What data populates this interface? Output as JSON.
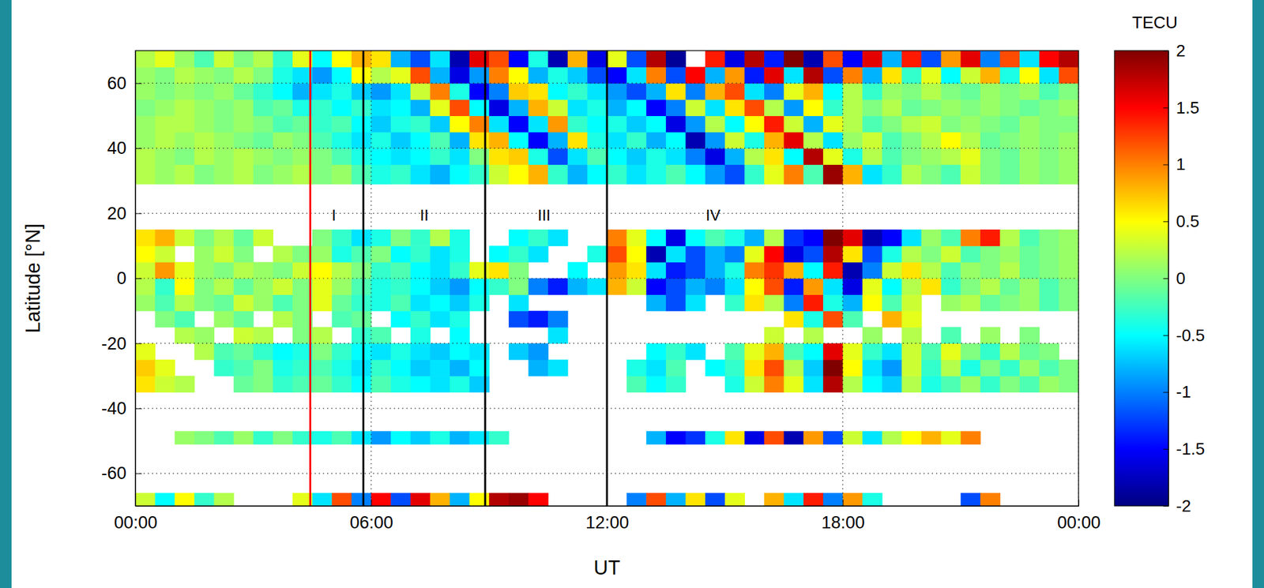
{
  "chart_data": {
    "type": "heatmap",
    "xlabel": "UT",
    "ylabel": "Latitude [°N]",
    "xlim": [
      0,
      24
    ],
    "ylim": [
      -70,
      70
    ],
    "xticks": [
      {
        "value": 0,
        "label": "00:00"
      },
      {
        "value": 6,
        "label": "06:00"
      },
      {
        "value": 12,
        "label": "12:00"
      },
      {
        "value": 18,
        "label": "18:00"
      },
      {
        "value": 24,
        "label": "00:00"
      }
    ],
    "yticks": [
      -60,
      -40,
      -20,
      0,
      20,
      40,
      60
    ],
    "grid": true,
    "x_bins": [
      0,
      0.5,
      1,
      1.5,
      2,
      2.5,
      3,
      3.5,
      4,
      4.5,
      5,
      5.5,
      6,
      6.5,
      7,
      7.5,
      8,
      8.5,
      9,
      9.5,
      10,
      10.5,
      11,
      11.5,
      12,
      12.5,
      13,
      13.5,
      14,
      14.5,
      15,
      15.5,
      16,
      16.5,
      17,
      17.5,
      18,
      18.5,
      19,
      19.5,
      20,
      20.5,
      21,
      21.5,
      22,
      22.5,
      23,
      23.5,
      24
    ],
    "y_bins": [
      -70,
      -66,
      -51,
      -47,
      -35,
      -30,
      -25,
      -20,
      -15,
      -10,
      -5,
      0,
      5,
      10,
      15,
      29,
      35,
      40,
      45,
      50,
      55,
      60,
      65,
      70
    ],
    "values": [
      [
        0.3,
        -0.5,
        0.5,
        -0.3,
        0.2,
        null,
        null,
        null,
        0.4,
        -0.6,
        1.2,
        -1.0,
        1.5,
        -1.2,
        1.6,
        0.8,
        -0.8,
        0.5,
        1.8,
        1.9,
        1.5,
        null,
        null,
        null,
        null,
        -1.0,
        1.2,
        -0.8,
        0.6,
        -1.2,
        0.4,
        null,
        0.8,
        -0.6,
        1.4,
        -1.0,
        0.9,
        -0.4,
        null,
        null,
        null,
        null,
        -1.2,
        1.0,
        null,
        null,
        null,
        null
      ],
      [
        null,
        null,
        null,
        null,
        null,
        null,
        null,
        null,
        null,
        null,
        null,
        null,
        null,
        null,
        null,
        null,
        null,
        null,
        null,
        null,
        null,
        null,
        null,
        null,
        null,
        null,
        null,
        null,
        null,
        null,
        null,
        null,
        null,
        null,
        null,
        null,
        null,
        null,
        null,
        null,
        null,
        null,
        null,
        null,
        null,
        null,
        null,
        null
      ],
      [
        null,
        null,
        0.1,
        0.0,
        -0.2,
        0.1,
        -0.3,
        0.0,
        -0.3,
        -0.4,
        -0.2,
        -0.6,
        -0.9,
        -0.5,
        -0.7,
        -0.4,
        -0.8,
        -0.6,
        -0.3,
        null,
        null,
        null,
        null,
        null,
        null,
        null,
        -0.8,
        -1.5,
        -1.3,
        -0.4,
        0.6,
        -1.6,
        1.2,
        -1.8,
        0.9,
        -1.2,
        0.3,
        -0.6,
        0.2,
        0.5,
        0.8,
        0.4,
        1.0,
        null,
        null,
        null,
        null,
        null
      ],
      [
        null,
        null,
        null,
        null,
        null,
        null,
        null,
        null,
        null,
        null,
        null,
        null,
        null,
        null,
        null,
        null,
        null,
        null,
        null,
        null,
        null,
        null,
        null,
        null,
        null,
        null,
        null,
        null,
        null,
        null,
        null,
        null,
        null,
        null,
        null,
        null,
        null,
        null,
        null,
        null,
        null,
        null,
        null,
        null,
        null,
        null,
        null,
        null
      ],
      [
        0.6,
        0.3,
        0.2,
        null,
        null,
        -0.1,
        0.0,
        -0.3,
        -0.2,
        -0.1,
        -0.3,
        -0.5,
        -0.2,
        -0.4,
        -0.5,
        -0.6,
        -0.4,
        -0.7,
        null,
        null,
        null,
        null,
        null,
        null,
        null,
        -0.2,
        -0.5,
        -0.3,
        null,
        null,
        -0.4,
        0.3,
        1.0,
        0.4,
        -0.6,
        1.8,
        0.2,
        -0.5,
        -0.7,
        0.2,
        -0.4,
        -0.2,
        0.1,
        -0.3,
        0.0,
        -0.2,
        0.1,
        0.0
      ],
      [
        0.7,
        0.4,
        null,
        null,
        -0.3,
        -0.2,
        0.0,
        -0.4,
        -0.3,
        -0.2,
        -0.4,
        -0.6,
        -0.3,
        -0.5,
        -0.7,
        -0.6,
        -0.8,
        -0.5,
        null,
        null,
        -0.8,
        -0.6,
        null,
        null,
        null,
        -0.4,
        -0.6,
        -0.2,
        null,
        -0.5,
        -0.3,
        0.6,
        1.2,
        0.2,
        -0.7,
        2.0,
        0.5,
        -0.6,
        -0.9,
        0.3,
        -0.3,
        0.2,
        -0.4,
        0.0,
        -0.3,
        0.1,
        -0.2,
        0.0
      ],
      [
        0.4,
        null,
        null,
        0.2,
        -0.2,
        -0.1,
        -0.3,
        -0.5,
        -0.4,
        0.0,
        -0.3,
        -0.5,
        -0.6,
        -0.4,
        -0.6,
        -0.7,
        -0.5,
        -0.6,
        null,
        -0.7,
        -0.9,
        null,
        null,
        null,
        null,
        null,
        -0.5,
        -0.3,
        -0.6,
        null,
        -0.2,
        0.4,
        0.8,
        -0.2,
        -0.5,
        1.6,
        0.4,
        -0.3,
        -0.6,
        0.3,
        -0.2,
        0.4,
        0.0,
        -0.3,
        0.2,
        -0.1,
        0.0,
        null
      ],
      [
        null,
        null,
        0.2,
        0.1,
        null,
        0.3,
        0.2,
        null,
        0.0,
        0.2,
        null,
        -0.3,
        -0.2,
        null,
        -0.4,
        null,
        -0.5,
        null,
        null,
        null,
        null,
        -0.6,
        null,
        null,
        null,
        null,
        null,
        null,
        null,
        null,
        null,
        null,
        0.3,
        null,
        0.2,
        null,
        null,
        0.1,
        null,
        0.2,
        null,
        -0.2,
        null,
        0.1,
        null,
        0.0,
        null,
        null
      ],
      [
        null,
        0.0,
        -0.2,
        null,
        0.1,
        -0.1,
        null,
        0.2,
        0.0,
        null,
        -0.2,
        -0.1,
        null,
        -0.5,
        -0.3,
        -0.6,
        -0.4,
        null,
        null,
        -1.2,
        -1.4,
        -1.0,
        null,
        null,
        null,
        null,
        null,
        null,
        null,
        null,
        null,
        null,
        null,
        0.6,
        -0.4,
        1.2,
        -0.2,
        null,
        0.8,
        0.4,
        null,
        null,
        null,
        null,
        null,
        null,
        null,
        null
      ],
      [
        0.1,
        -0.2,
        0.2,
        0.0,
        -0.1,
        0.3,
        0.1,
        -0.2,
        0.0,
        0.4,
        -0.1,
        -0.3,
        -0.4,
        -0.2,
        -0.6,
        -0.5,
        -0.7,
        -0.4,
        null,
        -0.6,
        null,
        null,
        null,
        null,
        null,
        null,
        -0.8,
        -1.2,
        -0.6,
        null,
        -0.3,
        0.6,
        0.2,
        -1.0,
        1.4,
        -0.4,
        -0.8,
        0.5,
        -0.2,
        0.3,
        null,
        0.1,
        0.2,
        -0.1,
        0.0,
        0.1,
        -0.2,
        0.0
      ],
      [
        0.2,
        -0.3,
        0.5,
        0.0,
        0.2,
        -0.1,
        0.1,
        0.3,
        0.0,
        0.4,
        0.1,
        -0.2,
        -0.4,
        -0.3,
        -0.5,
        -0.7,
        -0.9,
        -0.5,
        -0.3,
        0.0,
        -1.0,
        -1.4,
        -0.8,
        -0.6,
        0.8,
        0.3,
        -1.5,
        -1.2,
        -0.8,
        -1.0,
        -0.6,
        0.5,
        1.2,
        -1.4,
        0.9,
        -0.6,
        -1.6,
        0.4,
        -0.5,
        0.2,
        0.6,
        -0.3,
        0.0,
        0.2,
        -0.1,
        0.1,
        -0.2,
        0.0
      ],
      [
        0.3,
        0.9,
        0.4,
        0.1,
        0.0,
        0.2,
        0.1,
        0.0,
        0.3,
        0.5,
        0.2,
        0.0,
        -0.3,
        -0.2,
        -0.5,
        -0.6,
        -0.3,
        0.4,
        0.6,
        0.0,
        null,
        null,
        -0.5,
        null,
        0.9,
        0.6,
        -0.6,
        -1.4,
        -1.2,
        -0.8,
        -0.4,
        1.0,
        1.3,
        0.8,
        -0.5,
        1.4,
        -1.8,
        -1.0,
        0.3,
        0.6,
        0.2,
        -0.2,
        0.1,
        0.0,
        0.2,
        -0.1,
        0.0,
        0.1
      ],
      [
        0.5,
        0.3,
        null,
        0.1,
        0.3,
        0.0,
        null,
        0.2,
        0.0,
        0.1,
        -0.4,
        -0.2,
        0.0,
        -0.5,
        -0.3,
        -0.6,
        -0.4,
        null,
        -0.5,
        -0.3,
        -0.6,
        null,
        null,
        -0.4,
        1.2,
        0.5,
        -1.8,
        -0.6,
        -1.2,
        -0.8,
        -1.0,
        0.4,
        1.5,
        -1.6,
        -1.2,
        1.8,
        0.6,
        -1.2,
        -0.4,
        0.2,
        0.0,
        0.3,
        -0.2,
        0.0,
        0.1,
        -0.1,
        0.0,
        0.1
      ],
      [
        0.6,
        0.8,
        0.3,
        0.0,
        0.2,
        -0.1,
        0.3,
        null,
        null,
        0.0,
        -0.3,
        -0.6,
        -0.4,
        0.0,
        -0.3,
        0.2,
        -0.4,
        null,
        null,
        -0.5,
        -0.3,
        -0.6,
        null,
        null,
        1.0,
        0.4,
        -0.5,
        -1.6,
        -0.5,
        -0.2,
        -0.4,
        -0.8,
        0.2,
        -1.3,
        -1.5,
        2.0,
        1.6,
        -1.8,
        -1.5,
        -0.6,
        0.1,
        -0.2,
        1.0,
        1.4,
        0.2,
        -0.2,
        0.0,
        0.1
      ],
      [
        null,
        null,
        null,
        null,
        null,
        null,
        null,
        null,
        null,
        null,
        null,
        null,
        null,
        null,
        null,
        null,
        null,
        null,
        null,
        null,
        null,
        null,
        null,
        null,
        null,
        null,
        null,
        null,
        null,
        null,
        null,
        null,
        null,
        null,
        null,
        null,
        null,
        null,
        null,
        null,
        null,
        null,
        null,
        null,
        null,
        null,
        null,
        null
      ],
      [
        0.2,
        0.1,
        0.2,
        0.0,
        0.1,
        0.2,
        0.0,
        0.1,
        0.2,
        0.0,
        0.1,
        -0.2,
        -0.4,
        -0.3,
        -0.6,
        -0.8,
        -0.5,
        -0.3,
        0.3,
        0.5,
        0.8,
        -0.3,
        -0.8,
        -0.5,
        -0.3,
        -0.6,
        -0.4,
        -0.2,
        -0.5,
        -0.9,
        -1.2,
        -0.3,
        0.4,
        1.0,
        -0.2,
        1.9,
        0.8,
        -0.6,
        -0.3,
        0.2,
        0.0,
        -0.2,
        0.3,
        0.0,
        -0.1,
        0.1,
        0.0,
        0.1
      ],
      [
        0.2,
        0.1,
        0.0,
        0.2,
        0.1,
        0.2,
        0.1,
        0.0,
        0.1,
        0.0,
        -0.2,
        -0.4,
        -0.5,
        -0.6,
        -0.5,
        -0.3,
        -0.6,
        0.0,
        0.6,
        0.7,
        -0.4,
        -1.2,
        -0.6,
        -0.2,
        -0.5,
        -0.7,
        -0.4,
        -0.6,
        -1.0,
        -1.6,
        -0.8,
        0.2,
        0.6,
        -0.5,
        1.8,
        0.4,
        -0.4,
        0.2,
        -0.2,
        0.0,
        0.1,
        0.2,
        0.4,
        0.0,
        -0.1,
        0.1,
        0.0,
        0.1
      ],
      [
        0.1,
        0.2,
        0.1,
        0.2,
        0.1,
        0.0,
        -0.1,
        0.1,
        0.0,
        -0.2,
        -0.4,
        -0.6,
        -0.4,
        -0.7,
        -0.5,
        -0.2,
        -0.8,
        0.6,
        0.8,
        -0.5,
        -1.5,
        -0.8,
        0.6,
        -0.4,
        -0.6,
        -0.3,
        -0.8,
        -0.5,
        -1.8,
        -0.9,
        0.3,
        -0.4,
        0.8,
        1.6,
        0.2,
        -0.6,
        0.1,
        0.3,
        -0.2,
        0.0,
        0.2,
        0.5,
        0.2,
        -0.1,
        0.0,
        0.1,
        0.0,
        0.1
      ],
      [
        0.1,
        0.2,
        0.2,
        0.1,
        0.0,
        0.1,
        0.0,
        -0.2,
        -0.1,
        -0.3,
        -0.2,
        -0.5,
        -0.7,
        -0.4,
        -0.3,
        -0.7,
        0.5,
        1.0,
        -0.6,
        -1.5,
        -0.6,
        0.9,
        -0.3,
        -0.5,
        -0.4,
        -0.7,
        -0.5,
        -1.6,
        -0.9,
        0.2,
        -0.5,
        0.5,
        1.4,
        0.3,
        -0.8,
        0.4,
        0.2,
        -0.2,
        0.0,
        0.2,
        0.3,
        0.0,
        0.1,
        0.0,
        -0.1,
        0.1,
        0.0,
        0.0
      ],
      [
        0.0,
        0.1,
        0.2,
        0.1,
        0.0,
        0.1,
        -0.2,
        -0.1,
        -0.4,
        -0.3,
        -0.5,
        -0.3,
        -0.6,
        -0.5,
        -0.8,
        0.4,
        1.2,
        -0.5,
        -1.6,
        -0.8,
        0.8,
        0.3,
        -0.6,
        -0.4,
        -0.8,
        -0.5,
        -1.5,
        -1.0,
        0.3,
        -0.6,
        0.6,
        1.2,
        0.2,
        -0.9,
        0.5,
        -0.3,
        0.2,
        0.0,
        0.2,
        -0.1,
        0.0,
        0.1,
        0.0,
        0.1,
        0.0,
        -0.1,
        0.0,
        0.1
      ],
      [
        0.1,
        0.0,
        0.1,
        0.0,
        0.1,
        -0.1,
        -0.3,
        -0.5,
        -0.8,
        -0.6,
        -0.4,
        -0.7,
        -0.9,
        -0.6,
        0.3,
        1.0,
        -0.4,
        -1.5,
        -1.0,
        0.7,
        0.6,
        -0.5,
        -0.3,
        -0.6,
        -0.9,
        -1.2,
        -0.8,
        0.6,
        -1.0,
        0.8,
        1.2,
        -0.6,
        -1.0,
        0.4,
        0.8,
        -0.5,
        0.2,
        -0.3,
        0.1,
        0.0,
        0.2,
        0.0,
        -0.1,
        0.1,
        0.0,
        0.1,
        -0.2,
        0.0
      ],
      [
        0.1,
        0.0,
        0.2,
        0.1,
        0.0,
        0.2,
        0.0,
        -0.4,
        -0.6,
        -0.9,
        -0.5,
        0.5,
        0.2,
        0.4,
        1.2,
        -0.8,
        -1.6,
        -0.9,
        1.0,
        0.5,
        -0.8,
        -0.4,
        -0.7,
        -1.2,
        -1.5,
        -0.6,
        1.0,
        -1.2,
        1.5,
        -0.8,
        0.9,
        -1.4,
        1.6,
        -0.6,
        1.8,
        -1.2,
        1.0,
        -0.8,
        0.6,
        -0.3,
        0.4,
        -0.5,
        0.3,
        0.8,
        -0.4,
        0.5,
        -0.6,
        1.2
      ],
      [
        0.2,
        0.4,
        0.1,
        -0.2,
        0.3,
        0.0,
        0.2,
        -0.3,
        0.4,
        -0.5,
        0.5,
        0.8,
        0.6,
        -0.8,
        -1.2,
        -0.6,
        -1.8,
        1.6,
        1.2,
        -1.5,
        -0.4,
        -1.8,
        0.8,
        -1.6,
        0.4,
        -1.2,
        1.8,
        -1.9,
        null,
        1.4,
        -1.6,
        1.8,
        -1.4,
        2.0,
        -1.8,
        1.2,
        -1.5,
        1.6,
        -0.8,
        1.4,
        -1.2,
        0.9,
        1.6,
        -1.0,
        1.2,
        -0.6,
        1.5,
        1.8
      ]
    ],
    "colorbar": {
      "title": "TECU",
      "lim": [
        -2,
        2
      ],
      "ticks": [
        -2,
        -1.5,
        -1,
        -0.5,
        0,
        0.5,
        1,
        1.5,
        2
      ]
    },
    "vlines": [
      {
        "x": 4.45,
        "color": "#ff0000"
      },
      {
        "x": 5.8,
        "color": "#000000"
      },
      {
        "x": 8.9,
        "color": "#000000"
      },
      {
        "x": 12,
        "color": "#000000"
      }
    ],
    "annotations": [
      {
        "text": "I",
        "x": 5.05,
        "y": 19
      },
      {
        "text": "II",
        "x": 7.35,
        "y": 19
      },
      {
        "text": "III",
        "x": 10.4,
        "y": 19
      },
      {
        "text": "IV",
        "x": 14.7,
        "y": 19
      }
    ]
  }
}
